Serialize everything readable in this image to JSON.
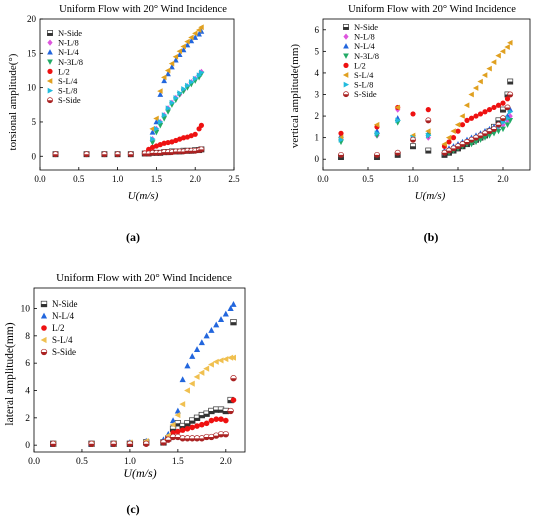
{
  "figure": {
    "panel_labels": [
      "(a)",
      "(b)",
      "(c)"
    ]
  },
  "chart_data": [
    {
      "type": "scatter",
      "title": "Uniform Flow with 20° Wind Incidence",
      "xlabel": "U(m/s)",
      "ylabel": "torsional amplitude(°)",
      "xlim": [
        0,
        2.5
      ],
      "ylim": [
        -2,
        20
      ],
      "xticks": [
        "0.0",
        "0.5",
        "1.0",
        "1.5",
        "2.0",
        "2.5"
      ],
      "yticks": [
        "0",
        "5",
        "10",
        "15",
        "20"
      ],
      "legend_position": "top-left",
      "grid": false,
      "series": [
        {
          "name": "N-Side",
          "color": "#333333",
          "marker": "half-square",
          "x": [
            0.2,
            0.6,
            0.83,
            1.0,
            1.17,
            1.35,
            1.4,
            1.45,
            1.5,
            1.55,
            1.6,
            1.65,
            1.7,
            1.75,
            1.8,
            1.85,
            1.9,
            1.95,
            2.0,
            2.05,
            2.08
          ],
          "y": [
            0.3,
            0.3,
            0.3,
            0.3,
            0.3,
            0.4,
            0.4,
            0.5,
            0.5,
            0.5,
            0.6,
            0.6,
            0.7,
            0.7,
            0.7,
            0.8,
            0.8,
            0.8,
            0.9,
            0.9,
            1.0
          ]
        },
        {
          "name": "N-L/8",
          "color": "#dd55dd",
          "marker": "diamond",
          "x": [
            1.45,
            1.5,
            1.55,
            1.6,
            1.65,
            1.7,
            1.75,
            1.8,
            1.85,
            1.9,
            1.95,
            2.0,
            2.05,
            2.08
          ],
          "y": [
            2.5,
            4.0,
            5.0,
            6.0,
            7.0,
            7.8,
            8.5,
            9.0,
            9.6,
            10.2,
            10.8,
            11.3,
            11.8,
            12.3
          ]
        },
        {
          "name": "N-L/4",
          "color": "#2266dd",
          "marker": "triangle-up",
          "x": [
            1.45,
            1.5,
            1.55,
            1.6,
            1.65,
            1.7,
            1.75,
            1.8,
            1.85,
            1.9,
            1.95,
            2.0,
            2.05,
            2.08
          ],
          "y": [
            3.5,
            5.0,
            9.0,
            11.0,
            12.0,
            13.0,
            14.0,
            14.8,
            15.5,
            16.2,
            16.8,
            17.3,
            17.8,
            18.2
          ]
        },
        {
          "name": "N-3L/8",
          "color": "#22aa66",
          "marker": "triangle-down",
          "x": [
            1.45,
            1.5,
            1.55,
            1.6,
            1.65,
            1.7,
            1.75,
            1.8,
            1.85,
            1.9,
            1.95,
            2.0,
            2.05,
            2.08
          ],
          "y": [
            2.0,
            3.5,
            4.5,
            5.5,
            6.5,
            7.5,
            8.2,
            9.0,
            9.5,
            10.0,
            10.5,
            11.0,
            11.5,
            12.0
          ]
        },
        {
          "name": "L/2",
          "color": "#ee1111",
          "marker": "circle",
          "x": [
            0.2,
            0.6,
            0.83,
            1.0,
            1.17,
            1.35,
            1.4,
            1.45,
            1.5,
            1.55,
            1.6,
            1.65,
            1.7,
            1.75,
            1.8,
            1.85,
            1.9,
            1.95,
            2.0,
            2.05,
            2.08
          ],
          "y": [
            0.3,
            0.3,
            0.3,
            0.3,
            0.3,
            0.5,
            1.0,
            1.3,
            1.5,
            1.7,
            1.9,
            2.0,
            2.1,
            2.3,
            2.5,
            2.7,
            2.8,
            3.0,
            3.2,
            4.0,
            4.5
          ]
        },
        {
          "name": "S-L/4",
          "color": "#e0a020",
          "marker": "triangle-left",
          "x": [
            1.45,
            1.5,
            1.55,
            1.6,
            1.65,
            1.7,
            1.75,
            1.8,
            1.85,
            1.9,
            1.95,
            2.0,
            2.05,
            2.08
          ],
          "y": [
            4.0,
            5.5,
            9.5,
            11.5,
            12.5,
            13.5,
            14.5,
            15.3,
            16.0,
            16.7,
            17.3,
            17.9,
            18.4,
            18.8
          ]
        },
        {
          "name": "S-L/8",
          "color": "#22bbdd",
          "marker": "triangle-right",
          "x": [
            1.45,
            1.5,
            1.55,
            1.6,
            1.65,
            1.7,
            1.75,
            1.8,
            1.85,
            1.9,
            1.95,
            2.0,
            2.05,
            2.08
          ],
          "y": [
            2.5,
            4.0,
            5.0,
            6.0,
            7.0,
            7.8,
            8.5,
            9.2,
            9.8,
            10.3,
            10.8,
            11.3,
            11.8,
            12.2
          ]
        },
        {
          "name": "S-Side",
          "color": "#aa2222",
          "marker": "half-circle",
          "x": [
            0.2,
            0.6,
            0.83,
            1.0,
            1.17,
            1.35,
            1.4,
            1.45,
            1.5,
            1.55,
            1.6,
            1.65,
            1.7,
            1.75,
            1.8,
            1.85,
            1.9,
            1.95,
            2.0,
            2.05,
            2.08
          ],
          "y": [
            0.3,
            0.3,
            0.3,
            0.3,
            0.3,
            0.4,
            0.4,
            0.5,
            0.5,
            0.5,
            0.6,
            0.6,
            0.6,
            0.7,
            0.7,
            0.7,
            0.8,
            0.8,
            0.8,
            0.9,
            1.0
          ]
        }
      ]
    },
    {
      "type": "scatter",
      "title": "Uniform Flow with 20° Wind Incidence",
      "xlabel": "U(m/s)",
      "ylabel": "vertical amplitude(mm)",
      "xlim": [
        0,
        2.3
      ],
      "ylim": [
        -0.5,
        6.5
      ],
      "xticks": [
        "0.0",
        "0.5",
        "1.0",
        "1.5",
        "2.0"
      ],
      "yticks": [
        "0",
        "1",
        "2",
        "3",
        "4",
        "5",
        "6"
      ],
      "legend_position": "top-left",
      "grid": false,
      "series": [
        {
          "name": "N-Side",
          "color": "#333333",
          "marker": "half-square",
          "x": [
            0.2,
            0.6,
            0.83,
            1.0,
            1.17,
            1.35,
            1.4,
            1.45,
            1.5,
            1.55,
            1.6,
            1.65,
            1.7,
            1.75,
            1.8,
            1.85,
            1.9,
            1.95,
            2.0,
            2.05,
            2.08
          ],
          "y": [
            0.1,
            0.1,
            0.2,
            0.6,
            0.4,
            0.2,
            0.3,
            0.4,
            0.5,
            0.6,
            0.7,
            0.8,
            0.9,
            1.0,
            1.1,
            1.3,
            1.5,
            1.8,
            2.3,
            3.0,
            3.6
          ]
        },
        {
          "name": "N-L/8",
          "color": "#dd55dd",
          "marker": "diamond",
          "x": [
            0.2,
            0.6,
            0.83,
            1.0,
            1.17,
            1.35,
            1.4,
            1.45,
            1.5,
            1.55,
            1.6,
            1.65,
            1.7,
            1.75,
            1.8,
            1.85,
            1.9,
            1.95,
            2.0,
            2.05,
            2.08
          ],
          "y": [
            0.9,
            1.1,
            2.3,
            1.0,
            1.0,
            0.3,
            0.4,
            0.5,
            0.6,
            0.7,
            0.8,
            0.9,
            1.0,
            1.1,
            1.2,
            1.3,
            1.4,
            1.5,
            1.6,
            1.8,
            2.0
          ]
        },
        {
          "name": "N-L/4",
          "color": "#2266dd",
          "marker": "triangle-up",
          "x": [
            0.2,
            0.6,
            0.83,
            1.0,
            1.17,
            1.35,
            1.4,
            1.45,
            1.5,
            1.55,
            1.6,
            1.65,
            1.7,
            1.75,
            1.8,
            1.85,
            1.9,
            1.95,
            2.0,
            2.05,
            2.08
          ],
          "y": [
            1.1,
            1.3,
            1.9,
            1.0,
            1.2,
            0.4,
            0.5,
            0.6,
            0.7,
            0.8,
            0.9,
            1.0,
            1.1,
            1.2,
            1.3,
            1.4,
            1.5,
            1.6,
            1.8,
            2.0,
            2.3
          ]
        },
        {
          "name": "N-3L/8",
          "color": "#22aa66",
          "marker": "triangle-down",
          "x": [
            0.2,
            0.6,
            0.83,
            1.0,
            1.17,
            1.35,
            1.4,
            1.45,
            1.5,
            1.55,
            1.6,
            1.65,
            1.7,
            1.75,
            1.8,
            1.85,
            1.9,
            1.95,
            2.0,
            2.05,
            2.08
          ],
          "y": [
            0.8,
            1.1,
            1.7,
            1.0,
            1.1,
            0.3,
            0.3,
            0.4,
            0.5,
            0.6,
            0.7,
            0.7,
            0.8,
            0.9,
            1.0,
            1.1,
            1.2,
            1.3,
            1.4,
            1.6,
            1.8
          ]
        },
        {
          "name": "L/2",
          "color": "#ee1111",
          "marker": "circle",
          "x": [
            0.2,
            0.6,
            0.83,
            1.0,
            1.17,
            1.35,
            1.4,
            1.45,
            1.5,
            1.55,
            1.6,
            1.65,
            1.7,
            1.75,
            1.8,
            1.85,
            1.9,
            1.95,
            2.0,
            2.05,
            2.08
          ],
          "y": [
            1.2,
            1.5,
            2.4,
            2.1,
            2.3,
            0.6,
            0.8,
            1.0,
            1.3,
            1.6,
            1.8,
            1.9,
            2.0,
            2.1,
            2.2,
            2.3,
            2.4,
            2.5,
            2.6,
            2.8,
            3.0
          ]
        },
        {
          "name": "S-L/4",
          "color": "#e0a020",
          "marker": "triangle-left",
          "x": [
            0.2,
            0.6,
            0.83,
            1.0,
            1.17,
            1.35,
            1.4,
            1.45,
            1.5,
            1.55,
            1.6,
            1.65,
            1.7,
            1.75,
            1.8,
            1.85,
            1.9,
            1.95,
            2.0,
            2.05,
            2.08
          ],
          "y": [
            1.0,
            1.6,
            2.4,
            1.1,
            1.3,
            0.7,
            1.0,
            1.3,
            1.6,
            2.0,
            2.5,
            3.0,
            3.3,
            3.6,
            3.9,
            4.2,
            4.5,
            4.8,
            5.0,
            5.2,
            5.4
          ]
        },
        {
          "name": "S-L/8",
          "color": "#22bbdd",
          "marker": "triangle-right",
          "x": [
            0.2,
            0.6,
            0.83,
            1.0,
            1.17,
            1.35,
            1.4,
            1.45,
            1.5,
            1.55,
            1.6,
            1.65,
            1.7,
            1.75,
            1.8,
            1.85,
            1.9,
            1.95,
            2.0,
            2.05,
            2.08
          ],
          "y": [
            0.9,
            1.2,
            1.8,
            1.0,
            1.1,
            0.3,
            0.4,
            0.5,
            0.6,
            0.7,
            0.8,
            0.9,
            1.0,
            1.1,
            1.2,
            1.3,
            1.4,
            1.5,
            1.7,
            1.9,
            2.2
          ]
        },
        {
          "name": "S-Side",
          "color": "#aa2222",
          "marker": "half-circle",
          "x": [
            0.2,
            0.6,
            0.83,
            1.0,
            1.17,
            1.35,
            1.4,
            1.45,
            1.5,
            1.55,
            1.6,
            1.65,
            1.7,
            1.75,
            1.8,
            1.85,
            1.9,
            1.95,
            2.0,
            2.05,
            2.08
          ],
          "y": [
            0.2,
            0.2,
            0.3,
            0.9,
            1.8,
            0.3,
            0.4,
            0.5,
            0.6,
            0.7,
            0.8,
            0.9,
            1.0,
            1.1,
            1.2,
            1.3,
            1.4,
            1.6,
            1.9,
            2.4,
            3.0
          ]
        }
      ]
    },
    {
      "type": "scatter",
      "title": "Uniform Flow with 20° Wind Incidence",
      "xlabel": "U(m/s)",
      "ylabel": "lateral amplitude(mm)",
      "xlim": [
        0,
        2.2
      ],
      "ylim": [
        -0.5,
        11.5
      ],
      "xticks": [
        "0.0",
        "0.5",
        "1.0",
        "1.5",
        "2.0"
      ],
      "yticks": [
        "0",
        "2",
        "4",
        "6",
        "8",
        "10"
      ],
      "legend_position": "top-left",
      "grid": false,
      "series": [
        {
          "name": "N-Side",
          "color": "#333333",
          "marker": "half-square",
          "x": [
            0.2,
            0.6,
            0.83,
            1.0,
            1.17,
            1.35,
            1.4,
            1.45,
            1.5,
            1.55,
            1.6,
            1.65,
            1.7,
            1.75,
            1.8,
            1.85,
            1.9,
            1.95,
            2.0,
            2.05,
            2.08
          ],
          "y": [
            0.1,
            0.1,
            0.1,
            0.1,
            0.2,
            0.2,
            0.5,
            1.2,
            1.6,
            1.4,
            1.6,
            1.8,
            2.0,
            2.2,
            2.3,
            2.5,
            2.6,
            2.6,
            2.5,
            3.3,
            9.0
          ]
        },
        {
          "name": "N-L/4",
          "color": "#2266dd",
          "marker": "triangle-up",
          "x": [
            0.2,
            0.6,
            0.83,
            1.0,
            1.17,
            1.35,
            1.4,
            1.45,
            1.5,
            1.55,
            1.6,
            1.65,
            1.7,
            1.75,
            1.8,
            1.85,
            1.9,
            1.95,
            2.0,
            2.05,
            2.08
          ],
          "y": [
            0.1,
            0.1,
            0.1,
            0.2,
            0.3,
            0.4,
            0.8,
            1.8,
            2.5,
            4.8,
            5.8,
            6.5,
            7.0,
            7.5,
            8.0,
            8.4,
            8.8,
            9.2,
            9.6,
            10.0,
            10.3
          ]
        },
        {
          "name": "L/2",
          "color": "#ee1111",
          "marker": "circle",
          "x": [
            0.2,
            0.6,
            0.83,
            1.0,
            1.17,
            1.35,
            1.4,
            1.45,
            1.5,
            1.55,
            1.6,
            1.65,
            1.7,
            1.75,
            1.8,
            1.85,
            1.9,
            1.95,
            2.0,
            2.05,
            2.08
          ],
          "y": [
            0.1,
            0.1,
            0.1,
            0.1,
            0.2,
            0.2,
            0.5,
            0.9,
            1.0,
            1.1,
            1.2,
            1.3,
            1.4,
            1.5,
            1.6,
            1.8,
            1.9,
            1.9,
            1.8,
            2.5,
            3.3
          ]
        },
        {
          "name": "S-L/4",
          "color": "#f0c050",
          "marker": "triangle-left",
          "x": [
            0.2,
            0.6,
            0.83,
            1.0,
            1.17,
            1.35,
            1.4,
            1.45,
            1.5,
            1.55,
            1.6,
            1.65,
            1.7,
            1.75,
            1.8,
            1.85,
            1.9,
            1.95,
            2.0,
            2.05,
            2.08
          ],
          "y": [
            0.1,
            0.1,
            0.1,
            0.2,
            0.3,
            0.3,
            0.7,
            1.5,
            2.2,
            3.0,
            4.0,
            4.5,
            5.0,
            5.3,
            5.6,
            5.9,
            6.1,
            6.2,
            6.3,
            6.4,
            6.4
          ]
        },
        {
          "name": "S-Side",
          "color": "#aa2222",
          "marker": "half-circle",
          "x": [
            0.2,
            0.6,
            0.83,
            1.0,
            1.17,
            1.35,
            1.4,
            1.45,
            1.5,
            1.55,
            1.6,
            1.65,
            1.7,
            1.75,
            1.8,
            1.85,
            1.9,
            1.95,
            2.0,
            2.05,
            2.08
          ],
          "y": [
            0.1,
            0.1,
            0.1,
            0.1,
            0.1,
            0.2,
            0.4,
            0.6,
            0.6,
            0.5,
            0.5,
            0.5,
            0.5,
            0.5,
            0.6,
            0.6,
            0.7,
            0.8,
            0.8,
            2.5,
            4.9
          ]
        }
      ]
    }
  ]
}
